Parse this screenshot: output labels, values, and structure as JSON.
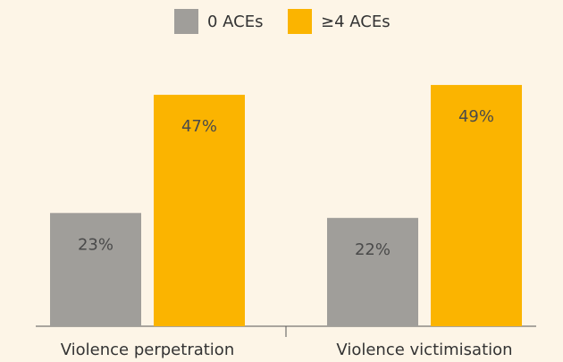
{
  "chart_data": {
    "type": "bar",
    "categories": [
      "Violence perpetration",
      "Violence victimisation"
    ],
    "series": [
      {
        "name": "0 ACEs",
        "color": "#a09e9a",
        "values": [
          23,
          22
        ],
        "value_labels": [
          "23%",
          "22%"
        ]
      },
      {
        "name": "≥4 ACEs",
        "color": "#fbb400",
        "values": [
          47,
          49
        ],
        "value_labels": [
          "47%",
          "49%"
        ]
      }
    ],
    "ylim": [
      0,
      55
    ],
    "legend": "top"
  }
}
